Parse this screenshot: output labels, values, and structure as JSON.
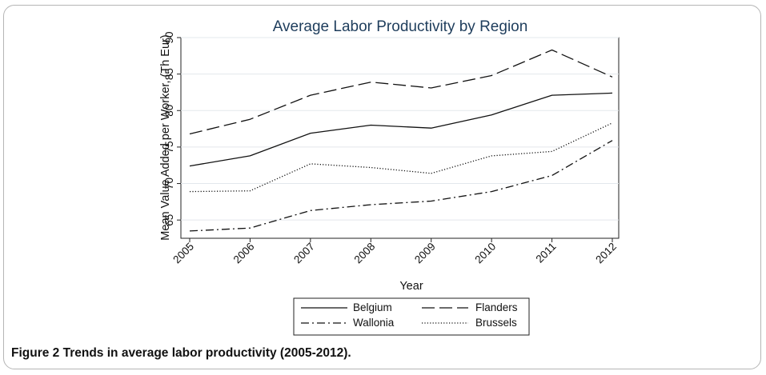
{
  "figure": {
    "caption_label": "Figure 2",
    "caption_text": "Trends in average labor productivity (2005-2012)."
  },
  "chart_data": {
    "type": "line",
    "title": "Average Labor Productivity by Region",
    "xlabel": "Year",
    "ylabel": "Mean Value Added per Worker, (Th Eur)",
    "x": [
      "2005",
      "2006",
      "2007",
      "2008",
      "2009",
      "2010",
      "2011",
      "2012"
    ],
    "ylim": [
      62.5,
      90
    ],
    "yticks": [
      65,
      70,
      75,
      80,
      85,
      90
    ],
    "grid": true,
    "legend_position": "bottom",
    "series": [
      {
        "name": "Belgium",
        "values": [
          72.4,
          73.8,
          76.9,
          78.0,
          77.6,
          79.4,
          82.1,
          82.4
        ],
        "style": "solid",
        "color": "#111111"
      },
      {
        "name": "Flanders",
        "values": [
          76.8,
          78.8,
          82.1,
          83.9,
          83.1,
          84.8,
          88.3,
          84.6
        ],
        "style": "longdash",
        "color": "#111111"
      },
      {
        "name": "Wallonia",
        "values": [
          63.5,
          63.9,
          66.3,
          67.1,
          67.6,
          68.9,
          71.1,
          75.9
        ],
        "style": "dashdot",
        "color": "#111111"
      },
      {
        "name": "Brussels",
        "values": [
          68.9,
          69.0,
          72.7,
          72.2,
          71.4,
          73.8,
          74.4,
          78.3
        ],
        "style": "dotted",
        "color": "#111111"
      }
    ]
  }
}
